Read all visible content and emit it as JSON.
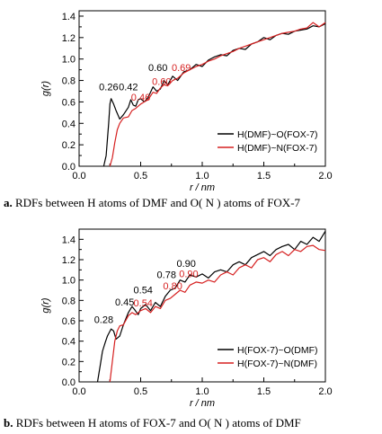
{
  "captions": {
    "a": {
      "prefix": "a.",
      "text": "RDFs between H atoms of DMF and O( N ) atoms of FOX-7"
    },
    "b": {
      "prefix": "b.",
      "text": "RDFs between H atoms of FOX-7 and O( N ) atoms of DMF"
    }
  },
  "chart_data": [
    {
      "id": "a",
      "type": "line",
      "xlabel": "r / nm",
      "ylabel": "g(r)",
      "xlim": [
        0.0,
        2.0
      ],
      "ylim": [
        0.0,
        1.45
      ],
      "xticks": [
        "0.0",
        "0.5",
        "1.0",
        "1.5",
        "2.0"
      ],
      "yticks": [
        "0.0",
        "0.2",
        "0.4",
        "0.6",
        "0.8",
        "1.0",
        "1.2",
        "1.4"
      ],
      "legend_position": "bottom-right",
      "series": [
        {
          "name": "H(DMF)~O(FOX-7)",
          "color": "#000000",
          "x": [
            0.2,
            0.22,
            0.24,
            0.25,
            0.26,
            0.28,
            0.3,
            0.33,
            0.36,
            0.4,
            0.42,
            0.44,
            0.46,
            0.48,
            0.5,
            0.53,
            0.56,
            0.6,
            0.63,
            0.66,
            0.69,
            0.72,
            0.76,
            0.8,
            0.85,
            0.9,
            0.95,
            1.0,
            1.05,
            1.1,
            1.15,
            1.2,
            1.25,
            1.3,
            1.35,
            1.4,
            1.45,
            1.5,
            1.55,
            1.6,
            1.65,
            1.7,
            1.75,
            1.8,
            1.85,
            1.9,
            1.95,
            2.0
          ],
          "y": [
            0.0,
            0.1,
            0.4,
            0.58,
            0.63,
            0.58,
            0.52,
            0.44,
            0.48,
            0.55,
            0.62,
            0.57,
            0.56,
            0.62,
            0.63,
            0.6,
            0.64,
            0.74,
            0.7,
            0.72,
            0.8,
            0.76,
            0.84,
            0.8,
            0.88,
            0.9,
            0.95,
            0.93,
            0.99,
            1.02,
            1.04,
            1.03,
            1.08,
            1.1,
            1.09,
            1.14,
            1.16,
            1.2,
            1.18,
            1.22,
            1.24,
            1.23,
            1.26,
            1.27,
            1.28,
            1.31,
            1.3,
            1.33
          ]
        },
        {
          "name": "H(DMF)~N(FOX-7)",
          "color": "#d62020",
          "x": [
            0.25,
            0.27,
            0.29,
            0.31,
            0.33,
            0.36,
            0.4,
            0.43,
            0.46,
            0.5,
            0.53,
            0.56,
            0.6,
            0.63,
            0.66,
            0.69,
            0.72,
            0.76,
            0.8,
            0.85,
            0.9,
            0.95,
            1.0,
            1.05,
            1.1,
            1.15,
            1.2,
            1.25,
            1.3,
            1.35,
            1.4,
            1.45,
            1.5,
            1.55,
            1.6,
            1.65,
            1.7,
            1.75,
            1.8,
            1.85,
            1.9,
            1.95,
            2.0
          ],
          "y": [
            0.0,
            0.08,
            0.22,
            0.34,
            0.4,
            0.45,
            0.46,
            0.52,
            0.54,
            0.58,
            0.6,
            0.62,
            0.69,
            0.68,
            0.73,
            0.76,
            0.75,
            0.8,
            0.82,
            0.87,
            0.9,
            0.93,
            0.95,
            0.98,
            1.0,
            1.03,
            1.05,
            1.07,
            1.1,
            1.12,
            1.14,
            1.16,
            1.18,
            1.2,
            1.22,
            1.24,
            1.25,
            1.26,
            1.28,
            1.29,
            1.34,
            1.3,
            1.34
          ]
        }
      ],
      "annotations": [
        {
          "text": "0.26",
          "x": 0.24,
          "y": 0.71,
          "color": "#000000"
        },
        {
          "text": "0.42",
          "x": 0.4,
          "y": 0.71,
          "color": "#000000"
        },
        {
          "text": "0.46",
          "x": 0.5,
          "y": 0.61,
          "color": "#d62020"
        },
        {
          "text": "0.60",
          "x": 0.64,
          "y": 0.89,
          "color": "#000000"
        },
        {
          "text": "0.60",
          "x": 0.67,
          "y": 0.76,
          "color": "#d62020"
        },
        {
          "text": "0.69",
          "x": 0.83,
          "y": 0.89,
          "color": "#d62020"
        }
      ]
    },
    {
      "id": "b",
      "type": "line",
      "xlabel": "r / nm",
      "ylabel": "g(r)",
      "xlim": [
        0.0,
        2.0
      ],
      "ylim": [
        0.0,
        1.5
      ],
      "xticks": [
        "0.0",
        "0.5",
        "1.0",
        "1.5",
        "2.0"
      ],
      "yticks": [
        "0.0",
        "0.2",
        "0.4",
        "0.6",
        "0.8",
        "1.0",
        "1.2",
        "1.4"
      ],
      "legend_position": "bottom-right",
      "series": [
        {
          "name": "H(FOX-7)~O(DMF)",
          "color": "#000000",
          "x": [
            0.15,
            0.17,
            0.19,
            0.21,
            0.23,
            0.26,
            0.28,
            0.3,
            0.33,
            0.36,
            0.4,
            0.43,
            0.45,
            0.48,
            0.5,
            0.54,
            0.58,
            0.62,
            0.66,
            0.7,
            0.74,
            0.78,
            0.82,
            0.86,
            0.9,
            0.95,
            1.0,
            1.05,
            1.1,
            1.15,
            1.2,
            1.25,
            1.3,
            1.35,
            1.4,
            1.45,
            1.5,
            1.55,
            1.6,
            1.65,
            1.7,
            1.75,
            1.8,
            1.85,
            1.9,
            1.95,
            2.0
          ],
          "y": [
            0.0,
            0.15,
            0.3,
            0.38,
            0.45,
            0.52,
            0.5,
            0.42,
            0.45,
            0.56,
            0.68,
            0.74,
            0.71,
            0.66,
            0.72,
            0.76,
            0.7,
            0.78,
            0.74,
            0.84,
            0.9,
            0.92,
            1.0,
            0.98,
            1.05,
            1.03,
            1.06,
            1.02,
            1.08,
            1.1,
            1.08,
            1.15,
            1.18,
            1.15,
            1.22,
            1.25,
            1.28,
            1.24,
            1.3,
            1.33,
            1.35,
            1.3,
            1.38,
            1.35,
            1.42,
            1.38,
            1.48
          ]
        },
        {
          "name": "H(FOX-7)~N(DMF)",
          "color": "#d62020",
          "x": [
            0.25,
            0.27,
            0.29,
            0.31,
            0.33,
            0.36,
            0.4,
            0.43,
            0.46,
            0.5,
            0.54,
            0.58,
            0.62,
            0.66,
            0.7,
            0.74,
            0.78,
            0.82,
            0.86,
            0.9,
            0.95,
            1.0,
            1.05,
            1.1,
            1.15,
            1.2,
            1.25,
            1.3,
            1.35,
            1.4,
            1.45,
            1.5,
            1.55,
            1.6,
            1.65,
            1.7,
            1.75,
            1.8,
            1.85,
            1.9,
            1.95,
            2.0
          ],
          "y": [
            0.0,
            0.2,
            0.4,
            0.5,
            0.55,
            0.56,
            0.65,
            0.68,
            0.66,
            0.7,
            0.72,
            0.68,
            0.74,
            0.72,
            0.8,
            0.82,
            0.86,
            0.9,
            0.88,
            0.95,
            0.98,
            0.97,
            1.0,
            0.98,
            1.05,
            1.08,
            1.05,
            1.12,
            1.15,
            1.12,
            1.2,
            1.22,
            1.18,
            1.25,
            1.28,
            1.24,
            1.3,
            1.28,
            1.33,
            1.34,
            1.3,
            1.29
          ]
        }
      ],
      "annotations": [
        {
          "text": "0.28",
          "x": 0.2,
          "y": 0.58,
          "color": "#000000"
        },
        {
          "text": "0.45",
          "x": 0.37,
          "y": 0.75,
          "color": "#000000"
        },
        {
          "text": "0.54",
          "x": 0.52,
          "y": 0.87,
          "color": "#000000"
        },
        {
          "text": "0.54",
          "x": 0.52,
          "y": 0.74,
          "color": "#d62020"
        },
        {
          "text": "0.78",
          "x": 0.71,
          "y": 1.02,
          "color": "#000000"
        },
        {
          "text": "0.80",
          "x": 0.76,
          "y": 0.91,
          "color": "#d62020"
        },
        {
          "text": "0.90",
          "x": 0.87,
          "y": 1.13,
          "color": "#000000"
        },
        {
          "text": "0.90",
          "x": 0.89,
          "y": 1.03,
          "color": "#d62020"
        }
      ]
    }
  ]
}
